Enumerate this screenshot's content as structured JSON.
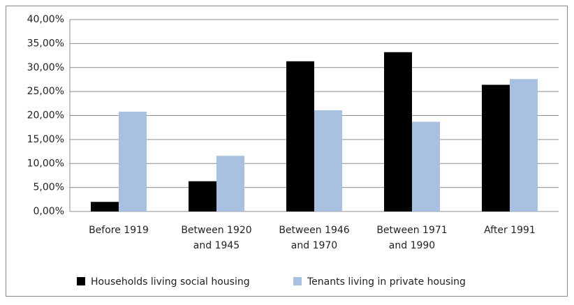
{
  "chart_data": {
    "type": "bar",
    "categories": [
      [
        "Before 1919"
      ],
      [
        "Between 1920",
        "and 1945"
      ],
      [
        "Between 1946",
        "and 1970"
      ],
      [
        "Between 1971",
        "and 1990"
      ],
      [
        "After 1991"
      ]
    ],
    "series": [
      {
        "name": "Households living social housing",
        "color": "#000000",
        "values": [
          2.0,
          6.3,
          31.3,
          33.2,
          26.4
        ]
      },
      {
        "name": "Tenants living in private housing",
        "color": "#a9c1e1",
        "values": [
          20.8,
          11.6,
          21.1,
          18.7,
          27.6
        ]
      }
    ],
    "ylim": [
      0,
      40
    ],
    "yticks": [
      {
        "value": 0,
        "label": "0,00%"
      },
      {
        "value": 5,
        "label": "5,00%"
      },
      {
        "value": 10,
        "label": "10,00%"
      },
      {
        "value": 15,
        "label": "15,00%"
      },
      {
        "value": 20,
        "label": "20,00%"
      },
      {
        "value": 25,
        "label": "25,00%"
      },
      {
        "value": 30,
        "label": "30,00%"
      },
      {
        "value": 35,
        "label": "35,00%"
      },
      {
        "value": 40,
        "label": "40,00%"
      }
    ],
    "grid": true,
    "legend": "bottom"
  }
}
